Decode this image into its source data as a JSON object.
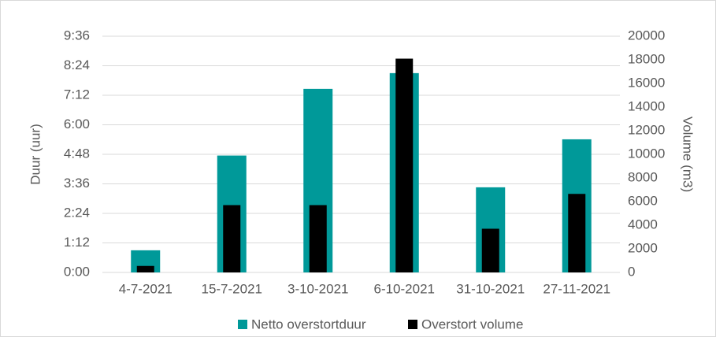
{
  "chart_data": {
    "type": "bar",
    "y_label": "Duur (uur)",
    "y2_label": "Volume (m3)",
    "categories": [
      "4-7-2021",
      "15-7-2021",
      "3-10-2021",
      "6-10-2021",
      "31-10-2021",
      "27-11-2021"
    ],
    "series": [
      {
        "name": "Netto overstortduur",
        "color": "#009999",
        "axis": "y",
        "values": [
          0.9,
          4.75,
          7.46,
          8.1,
          3.46,
          5.41
        ]
      },
      {
        "name": "Overstort volume",
        "color": "#000000",
        "axis": "y2",
        "values": [
          550,
          5700,
          5700,
          18100,
          3700,
          6650
        ]
      }
    ],
    "ylim": [
      0,
      9.6
    ],
    "yticks": [
      {
        "value": 0,
        "label": "0:00"
      },
      {
        "value": 1.2,
        "label": "1:12"
      },
      {
        "value": 2.4,
        "label": "2:24"
      },
      {
        "value": 3.6,
        "label": "3:36"
      },
      {
        "value": 4.8,
        "label": "4:48"
      },
      {
        "value": 6,
        "label": "6:00"
      },
      {
        "value": 7.2,
        "label": "7:12"
      },
      {
        "value": 8.4,
        "label": "8:24"
      },
      {
        "value": 9.6,
        "label": "9:36"
      }
    ],
    "y2lim": [
      0,
      20000
    ],
    "y2ticks": [
      0,
      2000,
      4000,
      6000,
      8000,
      10000,
      12000,
      14000,
      16000,
      18000,
      20000
    ],
    "grid": true,
    "legend": "bottom"
  }
}
